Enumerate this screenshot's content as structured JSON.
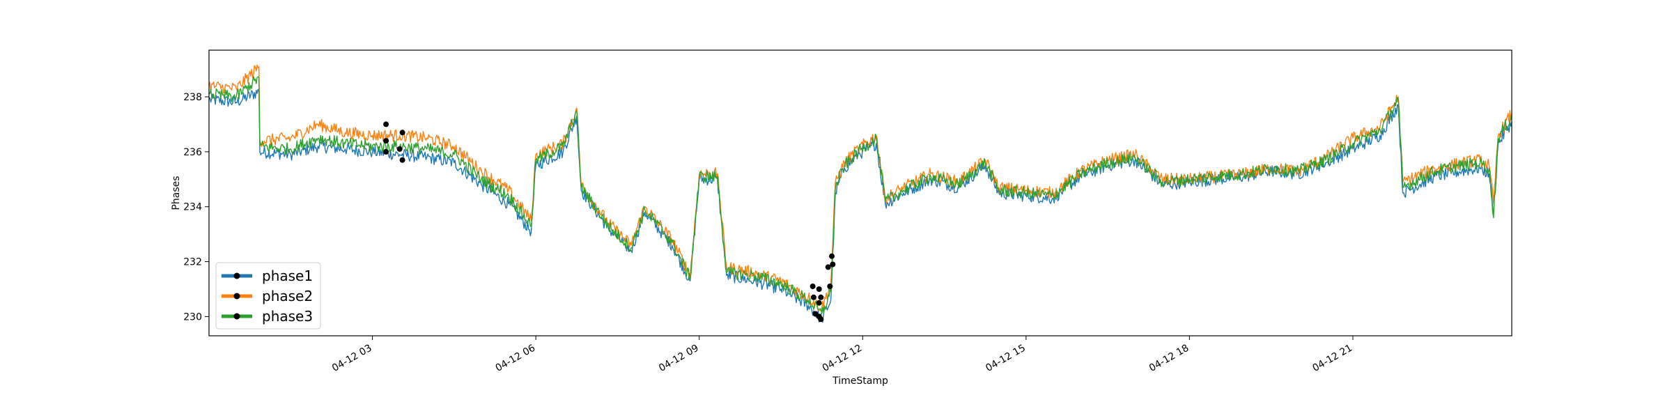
{
  "chart_data": {
    "type": "line",
    "title": "",
    "xlabel": "TimeStamp",
    "ylabel": "Phases",
    "xlim": [
      "2022-04-12 00:00",
      "2022-04-12 23:55"
    ],
    "ylim": [
      229.3,
      239.7
    ],
    "xticks": [
      {
        "t": "2022-04-12 03:00",
        "label": "04-12 03"
      },
      {
        "t": "2022-04-12 06:00",
        "label": "04-12 06"
      },
      {
        "t": "2022-04-12 09:00",
        "label": "04-12 09"
      },
      {
        "t": "2022-04-12 12:00",
        "label": "04-12 12"
      },
      {
        "t": "2022-04-12 15:00",
        "label": "04-12 15"
      },
      {
        "t": "2022-04-12 18:00",
        "label": "04-12 18"
      },
      {
        "t": "2022-04-12 21:00",
        "label": "04-12 21"
      }
    ],
    "yticks": [
      230,
      232,
      234,
      236,
      238
    ],
    "legend_position": "lower-left",
    "grid": false,
    "series": [
      {
        "name": "phase1",
        "color": "#1f77b4",
        "points": [
          [
            "00:00",
            237.9
          ],
          [
            "00:30",
            237.8
          ],
          [
            "00:55",
            238.2
          ],
          [
            "00:56",
            236.0
          ],
          [
            "01:30",
            235.9
          ],
          [
            "02:00",
            236.2
          ],
          [
            "02:30",
            236.1
          ],
          [
            "03:00",
            236.0
          ],
          [
            "03:30",
            235.9
          ],
          [
            "04:00",
            235.8
          ],
          [
            "04:30",
            235.6
          ],
          [
            "05:00",
            234.8
          ],
          [
            "05:30",
            234.1
          ],
          [
            "05:55",
            233.1
          ],
          [
            "06:00",
            235.5
          ],
          [
            "06:30",
            236.0
          ],
          [
            "06:45",
            237.3
          ],
          [
            "06:50",
            234.6
          ],
          [
            "07:20",
            233.2
          ],
          [
            "07:45",
            232.4
          ],
          [
            "08:00",
            233.8
          ],
          [
            "08:30",
            232.6
          ],
          [
            "08:50",
            231.3
          ],
          [
            "09:00",
            235.0
          ],
          [
            "09:20",
            235.0
          ],
          [
            "09:30",
            231.5
          ],
          [
            "10:00",
            231.3
          ],
          [
            "10:30",
            231.0
          ],
          [
            "11:00",
            230.4
          ],
          [
            "11:15",
            229.9
          ],
          [
            "11:25",
            230.6
          ],
          [
            "11:30",
            234.5
          ],
          [
            "11:40",
            235.4
          ],
          [
            "11:55",
            235.9
          ],
          [
            "12:15",
            236.3
          ],
          [
            "12:25",
            234.1
          ],
          [
            "12:45",
            234.5
          ],
          [
            "13:15",
            235.0
          ],
          [
            "13:45",
            234.7
          ],
          [
            "14:15",
            235.5
          ],
          [
            "14:30",
            234.5
          ],
          [
            "15:00",
            234.4
          ],
          [
            "15:30",
            234.3
          ],
          [
            "16:00",
            235.1
          ],
          [
            "16:30",
            235.5
          ],
          [
            "17:00",
            235.7
          ],
          [
            "17:30",
            234.8
          ],
          [
            "18:00",
            234.9
          ],
          [
            "18:30",
            235.0
          ],
          [
            "19:00",
            235.1
          ],
          [
            "19:30",
            235.3
          ],
          [
            "20:00",
            235.2
          ],
          [
            "20:30",
            235.6
          ],
          [
            "21:00",
            236.1
          ],
          [
            "21:30",
            236.6
          ],
          [
            "21:50",
            237.7
          ],
          [
            "21:55",
            234.5
          ],
          [
            "22:30",
            235.1
          ],
          [
            "23:00",
            235.3
          ],
          [
            "23:20",
            235.4
          ],
          [
            "23:30",
            235.2
          ],
          [
            "23:35",
            233.8
          ],
          [
            "23:40",
            236.3
          ],
          [
            "23:55",
            237.1
          ]
        ]
      },
      {
        "name": "phase2",
        "color": "#ff7f0e",
        "points": [
          [
            "00:00",
            238.4
          ],
          [
            "00:30",
            238.3
          ],
          [
            "00:55",
            239.1
          ],
          [
            "00:56",
            236.4
          ],
          [
            "01:30",
            236.5
          ],
          [
            "02:00",
            237.0
          ],
          [
            "02:30",
            236.7
          ],
          [
            "03:00",
            236.6
          ],
          [
            "03:30",
            236.6
          ],
          [
            "04:00",
            236.5
          ],
          [
            "04:30",
            236.2
          ],
          [
            "05:00",
            235.3
          ],
          [
            "05:30",
            234.6
          ],
          [
            "05:55",
            233.5
          ],
          [
            "06:00",
            235.9
          ],
          [
            "06:30",
            236.3
          ],
          [
            "06:45",
            237.6
          ],
          [
            "06:50",
            234.8
          ],
          [
            "07:20",
            233.4
          ],
          [
            "07:45",
            232.6
          ],
          [
            "08:00",
            234.0
          ],
          [
            "08:30",
            232.8
          ],
          [
            "08:50",
            231.5
          ],
          [
            "09:00",
            235.2
          ],
          [
            "09:20",
            235.2
          ],
          [
            "09:30",
            231.8
          ],
          [
            "10:00",
            231.6
          ],
          [
            "10:30",
            231.3
          ],
          [
            "11:00",
            230.7
          ],
          [
            "11:15",
            230.3
          ],
          [
            "11:25",
            231.2
          ],
          [
            "11:30",
            234.9
          ],
          [
            "11:40",
            235.6
          ],
          [
            "11:55",
            236.1
          ],
          [
            "12:15",
            236.6
          ],
          [
            "12:25",
            234.3
          ],
          [
            "12:45",
            234.7
          ],
          [
            "13:15",
            235.2
          ],
          [
            "13:45",
            234.9
          ],
          [
            "14:15",
            235.7
          ],
          [
            "14:30",
            234.7
          ],
          [
            "15:00",
            234.6
          ],
          [
            "15:30",
            234.5
          ],
          [
            "16:00",
            235.3
          ],
          [
            "16:30",
            235.7
          ],
          [
            "17:00",
            235.9
          ],
          [
            "17:30",
            235.0
          ],
          [
            "18:00",
            235.0
          ],
          [
            "18:30",
            235.1
          ],
          [
            "19:00",
            235.2
          ],
          [
            "19:30",
            235.4
          ],
          [
            "20:00",
            235.3
          ],
          [
            "20:30",
            235.8
          ],
          [
            "21:00",
            236.5
          ],
          [
            "21:30",
            236.9
          ],
          [
            "21:50",
            238.0
          ],
          [
            "21:55",
            234.9
          ],
          [
            "22:30",
            235.4
          ],
          [
            "23:00",
            235.6
          ],
          [
            "23:20",
            235.7
          ],
          [
            "23:30",
            235.5
          ],
          [
            "23:35",
            234.1
          ],
          [
            "23:40",
            236.6
          ],
          [
            "23:55",
            237.4
          ]
        ]
      },
      {
        "name": "phase3",
        "color": "#2ca02c",
        "points": [
          [
            "00:00",
            238.1
          ],
          [
            "00:30",
            238.0
          ],
          [
            "00:55",
            238.7
          ],
          [
            "00:56",
            236.2
          ],
          [
            "01:30",
            236.1
          ],
          [
            "02:00",
            236.5
          ],
          [
            "02:30",
            236.3
          ],
          [
            "03:00",
            236.2
          ],
          [
            "03:30",
            236.2
          ],
          [
            "04:00",
            236.1
          ],
          [
            "04:30",
            235.9
          ],
          [
            "05:00",
            235.0
          ],
          [
            "05:30",
            234.4
          ],
          [
            "05:55",
            233.3
          ],
          [
            "06:00",
            235.7
          ],
          [
            "06:30",
            236.2
          ],
          [
            "06:45",
            237.5
          ],
          [
            "06:50",
            234.7
          ],
          [
            "07:20",
            233.3
          ],
          [
            "07:45",
            232.5
          ],
          [
            "08:00",
            233.9
          ],
          [
            "08:30",
            232.7
          ],
          [
            "08:50",
            231.4
          ],
          [
            "09:00",
            235.1
          ],
          [
            "09:20",
            235.1
          ],
          [
            "09:30",
            231.6
          ],
          [
            "10:00",
            231.5
          ],
          [
            "10:30",
            231.2
          ],
          [
            "11:00",
            230.6
          ],
          [
            "11:15",
            230.1
          ],
          [
            "11:25",
            230.9
          ],
          [
            "11:30",
            234.7
          ],
          [
            "11:40",
            235.5
          ],
          [
            "11:55",
            236.0
          ],
          [
            "12:15",
            236.5
          ],
          [
            "12:25",
            234.2
          ],
          [
            "12:45",
            234.6
          ],
          [
            "13:15",
            235.1
          ],
          [
            "13:45",
            234.8
          ],
          [
            "14:15",
            235.6
          ],
          [
            "14:30",
            234.6
          ],
          [
            "15:00",
            234.5
          ],
          [
            "15:30",
            234.4
          ],
          [
            "16:00",
            235.2
          ],
          [
            "16:30",
            235.6
          ],
          [
            "17:00",
            235.8
          ],
          [
            "17:30",
            234.9
          ],
          [
            "18:00",
            235.0
          ],
          [
            "18:30",
            235.1
          ],
          [
            "19:00",
            235.2
          ],
          [
            "19:30",
            235.4
          ],
          [
            "20:00",
            235.3
          ],
          [
            "20:30",
            235.7
          ],
          [
            "21:00",
            236.3
          ],
          [
            "21:30",
            236.8
          ],
          [
            "21:50",
            237.9
          ],
          [
            "21:55",
            234.7
          ],
          [
            "22:30",
            235.3
          ],
          [
            "23:00",
            235.5
          ],
          [
            "23:20",
            235.6
          ],
          [
            "23:30",
            235.4
          ],
          [
            "23:35",
            233.6
          ],
          [
            "23:40",
            236.5
          ],
          [
            "23:55",
            237.3
          ]
        ]
      }
    ],
    "markers": [
      [
        "03:15",
        237.0
      ],
      [
        "03:15",
        236.4
      ],
      [
        "03:15",
        236.0
      ],
      [
        "03:30",
        236.1
      ],
      [
        "03:33",
        236.7
      ],
      [
        "03:33",
        235.7
      ],
      [
        "11:05",
        231.1
      ],
      [
        "11:06",
        230.7
      ],
      [
        "11:08",
        230.1
      ],
      [
        "11:12",
        231.0
      ],
      [
        "11:12",
        230.5
      ],
      [
        "11:12",
        230.0
      ],
      [
        "11:14",
        230.7
      ],
      [
        "11:14",
        229.9
      ],
      [
        "11:22",
        231.8
      ],
      [
        "11:24",
        231.1
      ],
      [
        "11:26",
        232.2
      ],
      [
        "11:27",
        231.9
      ]
    ]
  }
}
